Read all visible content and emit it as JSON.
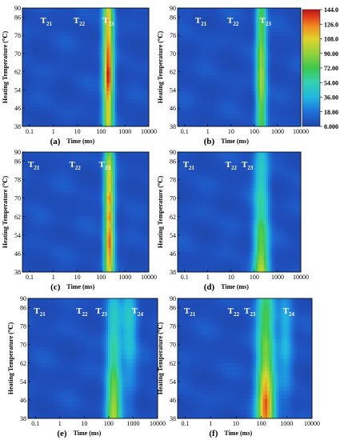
{
  "figure": {
    "ylabel": "Heating Temperature (℃)",
    "xlabel": "Time (ms)"
  },
  "colorbar": {
    "ticks": [
      "144.0",
      "126.0",
      "108.0",
      "90.00",
      "72.00",
      "54.00",
      "36.00",
      "18.00",
      "0.000"
    ],
    "min": 0,
    "max": 144,
    "colors": [
      "#1f46a8",
      "#1e6fd8",
      "#20b8e0",
      "#32d2b0",
      "#3cc84a",
      "#8fd23a",
      "#e0d42a",
      "#f08a20",
      "#e03a1c",
      "#b41818"
    ]
  },
  "chart_data": [
    {
      "type": "heatmap",
      "panel": "(a)",
      "xlabel": "Time (ms)",
      "ylabel": "Heating Temperature (℃)",
      "xscale": "log",
      "xlim": [
        0.05,
        10000
      ],
      "ylim": [
        38,
        90
      ],
      "xticks": [
        "0.1",
        "1",
        "10",
        "100",
        "1000",
        "10000"
      ],
      "yticks": [
        "38",
        "46",
        "54",
        "62",
        "70",
        "78",
        "86",
        "90"
      ],
      "peak_labels": [
        {
          "base": "T",
          "sub": "21",
          "time": 0.5
        },
        {
          "base": "T",
          "sub": "22",
          "time": 12
        },
        {
          "base": "T",
          "sub": "23",
          "time": 200
        }
      ],
      "peaks": [
        {
          "time": 200,
          "width": 0.15,
          "amp": [
            90,
            100,
            105,
            110,
            120,
            135,
            140,
            125,
            120,
            115,
            110,
            105,
            110,
            100
          ]
        }
      ]
    },
    {
      "type": "heatmap",
      "panel": "(b)",
      "xlabel": "Time (ms)",
      "ylabel": "Heating Temperature (℃)",
      "xscale": "log",
      "xlim": [
        0.05,
        10000
      ],
      "ylim": [
        38,
        90
      ],
      "xticks": [
        "0.1",
        "1",
        "10",
        "100",
        "1000",
        "10000"
      ],
      "yticks": [
        "38",
        "46",
        "54",
        "62",
        "70",
        "78",
        "86",
        "90"
      ],
      "peak_labels": [
        {
          "base": "T",
          "sub": "21",
          "time": 0.5
        },
        {
          "base": "T",
          "sub": "22",
          "time": 12
        },
        {
          "base": "T",
          "sub": "23",
          "time": 300
        }
      ],
      "peaks": [
        {
          "time": 200,
          "width": 0.15,
          "amp": [
            65,
            70,
            75,
            80,
            85,
            88,
            90,
            80,
            80,
            75,
            75,
            70,
            70,
            65
          ]
        }
      ]
    },
    {
      "type": "heatmap",
      "panel": "(c)",
      "xlabel": "Time (ms)",
      "ylabel": "Heating Temperature (℃)",
      "xscale": "log",
      "xlim": [
        0.05,
        10000
      ],
      "ylim": [
        38,
        90
      ],
      "xticks": [
        "0.1",
        "1",
        "10",
        "100",
        "1000",
        "10000"
      ],
      "yticks": [
        "38",
        "46",
        "54",
        "62",
        "70",
        "78",
        "86",
        "90"
      ],
      "peak_labels": [
        {
          "base": "T",
          "sub": "21",
          "time": 0.15
        },
        {
          "base": "T",
          "sub": "22",
          "time": 8
        },
        {
          "base": "T",
          "sub": "23",
          "time": 140
        }
      ],
      "peaks": [
        {
          "time": 220,
          "width": 0.14,
          "amp": [
            95,
            105,
            115,
            125,
            120,
            110,
            125,
            105,
            115,
            100,
            105,
            95,
            90,
            75
          ]
        }
      ]
    },
    {
      "type": "heatmap",
      "panel": "(d)",
      "xlabel": "Time (ms)",
      "ylabel": "Heating Temperature (℃)",
      "xscale": "log",
      "xlim": [
        0.05,
        10000
      ],
      "ylim": [
        38,
        90
      ],
      "xticks": [
        "0.1",
        "1",
        "10",
        "100",
        "1000",
        "10000"
      ],
      "yticks": [
        "38",
        "46",
        "54",
        "62",
        "70",
        "78",
        "86",
        "90"
      ],
      "peak_labels": [
        {
          "base": "T",
          "sub": "21",
          "time": 0.15
        },
        {
          "base": "T",
          "sub": "22",
          "time": 10
        },
        {
          "base": "T",
          "sub": "23",
          "time": 50
        }
      ],
      "peaks": [
        {
          "time": 200,
          "width": 0.22,
          "amp": [
            95,
            85,
            80,
            75,
            70,
            65,
            55,
            50,
            48,
            45,
            42,
            40,
            38,
            35
          ]
        }
      ]
    },
    {
      "type": "heatmap",
      "panel": "(e)",
      "xlabel": "Time (ms)",
      "ylabel": "Heating Temperature (℃)",
      "xscale": "log",
      "xlim": [
        0.05,
        10000
      ],
      "ylim": [
        38,
        90
      ],
      "xticks": [
        "0.1",
        "1",
        "10",
        "100",
        "1000",
        "10000"
      ],
      "yticks": [
        "38",
        "46",
        "54",
        "62",
        "70",
        "78",
        "86",
        "90"
      ],
      "peak_labels": [
        {
          "base": "T",
          "sub": "21",
          "time": 0.15
        },
        {
          "base": "T",
          "sub": "22",
          "time": 8
        },
        {
          "base": "T",
          "sub": "23",
          "time": 50
        },
        {
          "base": "T",
          "sub": "24",
          "time": 1500
        }
      ],
      "peaks": [
        {
          "time": 160,
          "width": 0.2,
          "amp": [
            90,
            85,
            82,
            78,
            72,
            65,
            58,
            55,
            50,
            45,
            42,
            38,
            35,
            30
          ]
        },
        {
          "time": 700,
          "width": 0.22,
          "amp": [
            5,
            8,
            10,
            12,
            15,
            20,
            25,
            30,
            34,
            36,
            38,
            38,
            36,
            32
          ]
        }
      ]
    },
    {
      "type": "heatmap",
      "panel": "(f)",
      "xlabel": "Time (ms)",
      "ylabel": "Heating Temperature (℃)",
      "xscale": "log",
      "xlim": [
        0.05,
        10000
      ],
      "ylim": [
        38,
        90
      ],
      "xticks": [
        "0.1",
        "1",
        "10",
        "100",
        "1000",
        "10000"
      ],
      "yticks": [
        "38",
        "46",
        "54",
        "62",
        "70",
        "78",
        "86",
        "90"
      ],
      "peak_labels": [
        {
          "base": "T",
          "sub": "21",
          "time": 0.15
        },
        {
          "base": "T",
          "sub": "22",
          "time": 8
        },
        {
          "base": "T",
          "sub": "23",
          "time": 35
        },
        {
          "base": "T",
          "sub": "24",
          "time": 1200
        }
      ],
      "peaks": [
        {
          "time": 150,
          "width": 0.24,
          "amp": [
            115,
            120,
            125,
            115,
            105,
            95,
            85,
            78,
            75,
            70,
            68,
            65,
            62,
            60
          ]
        },
        {
          "time": 900,
          "width": 0.2,
          "amp": [
            5,
            8,
            10,
            12,
            15,
            18,
            22,
            26,
            30,
            32,
            30,
            26,
            22,
            18
          ]
        }
      ]
    }
  ]
}
